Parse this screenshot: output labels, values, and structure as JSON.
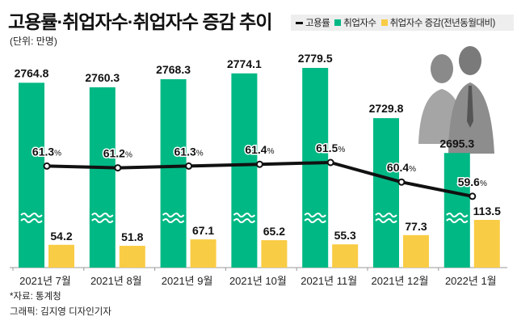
{
  "title": "고용률·취업자수·취업자수 증감 추이",
  "unit": "(단위: 만명)",
  "legend": [
    "고용률",
    "취업자수",
    "취업자수 증감(전년동월대비)"
  ],
  "source": "*자료: 통계청",
  "credit": "그래픽: 김지영 디자인기자",
  "colors": {
    "employed": "#00b884",
    "change": "#f9cc45",
    "rate": "#111111"
  },
  "chart_data": {
    "type": "bar",
    "title": "고용률·취업자수·취업자수 증감 추이",
    "categories": [
      "2021년 7월",
      "2021년 8월",
      "2021년 9월",
      "2021년 10월",
      "2021년 11월",
      "2021년 12월",
      "2022년 1월"
    ],
    "series": [
      {
        "name": "취업자수",
        "type": "bar",
        "values": [
          2764.8,
          2760.3,
          2768.3,
          2774.1,
          2779.5,
          2729.8,
          2695.3
        ],
        "labels": [
          "2764.8",
          "2760.3",
          "2768.3",
          "2774.1",
          "2779.5",
          "2729.8",
          "2695.3"
        ]
      },
      {
        "name": "취업자수 증감(전년동월대비)",
        "type": "bar",
        "values": [
          54.2,
          51.8,
          67.1,
          65.2,
          55.3,
          77.3,
          113.5
        ],
        "labels": [
          "54.2",
          "51.8",
          "67.1",
          "65.2",
          "55.3",
          "77.3",
          "113.5"
        ]
      },
      {
        "name": "고용률",
        "type": "line",
        "unit": "%",
        "values": [
          61.3,
          61.2,
          61.3,
          61.4,
          61.5,
          60.4,
          59.6
        ],
        "labels": [
          "61.3",
          "61.2",
          "61.3",
          "61.4",
          "61.5",
          "60.4",
          "59.6"
        ]
      }
    ],
    "axis_break": true,
    "grid": false,
    "legend_position": "top-right"
  }
}
